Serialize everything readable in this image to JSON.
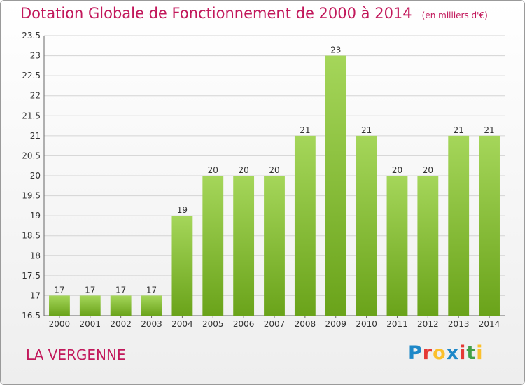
{
  "header": {
    "title": "Dotation Globale de Fonctionnement de 2000 à 2014",
    "unit": "(en milliers d'€)"
  },
  "commune": "LA VERGENNE",
  "logo": {
    "text": "Proxiti",
    "letters": [
      {
        "ch": "P",
        "color": "#1e88c8"
      },
      {
        "ch": "r",
        "color": "#e53935"
      },
      {
        "ch": "o",
        "color": "#fbc02d"
      },
      {
        "ch": "x",
        "color": "#1e88c8"
      },
      {
        "ch": "i",
        "color": "#e53935"
      },
      {
        "ch": "t",
        "color": "#43a047"
      },
      {
        "ch": "i",
        "color": "#fbc02d"
      }
    ]
  },
  "colors": {
    "bar_top": "#a5d65a",
    "bar_bottom": "#6aa31a",
    "title": "#c2185b"
  },
  "chart_data": {
    "type": "bar",
    "categories": [
      "2000",
      "2001",
      "2002",
      "2003",
      "2004",
      "2005",
      "2006",
      "2007",
      "2008",
      "2009",
      "2010",
      "2011",
      "2012",
      "2013",
      "2014"
    ],
    "values": [
      17,
      17,
      17,
      17,
      19,
      20,
      20,
      20,
      21,
      23,
      21,
      20,
      20,
      21,
      21
    ],
    "data_labels": [
      "17",
      "17",
      "17",
      "17",
      "19",
      "20",
      "20",
      "20",
      "21",
      "23",
      "21",
      "20",
      "20",
      "21",
      "21"
    ],
    "ylim": [
      16.5,
      23.5
    ],
    "yticks": [
      16.5,
      17,
      17.5,
      18,
      18.5,
      19,
      19.5,
      20,
      20.5,
      21,
      21.5,
      22,
      22.5,
      23,
      23.5
    ],
    "ytick_labels": [
      "16.5",
      "17",
      "17.5",
      "18",
      "18.5",
      "19",
      "19.5",
      "20",
      "20.5",
      "21",
      "21.5",
      "22",
      "22.5",
      "23",
      "23.5"
    ],
    "grid": true,
    "title": "Dotation Globale de Fonctionnement de 2000 à 2014",
    "xlabel": "",
    "ylabel": ""
  }
}
